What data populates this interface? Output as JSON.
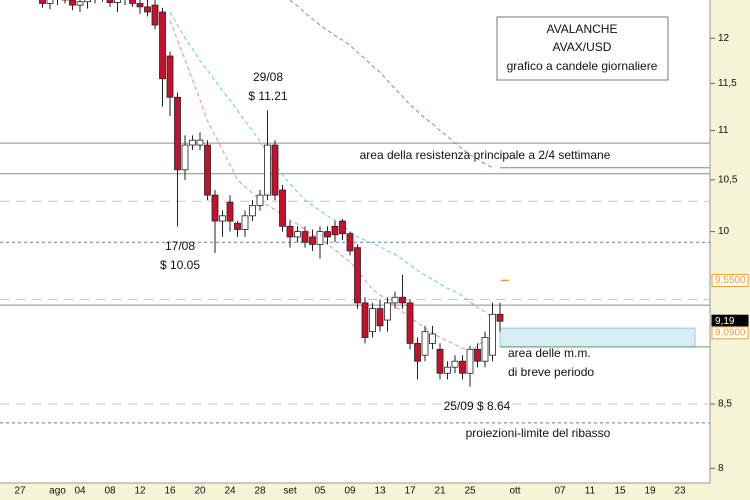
{
  "chart_data": {
    "type": "candlestick",
    "title": "AVALANCHE",
    "subtitle": "AVAX/USD",
    "description": "grafico a candele giornaliere",
    "log_scale": true,
    "up_color": "#ffffff",
    "down_color": "#c8102e",
    "ylim": [
      7.89,
      12.44
    ],
    "yticks": [
      {
        "value": 12,
        "label": "12"
      },
      {
        "value": 11.5,
        "label": "11,5"
      },
      {
        "value": 11,
        "label": "11"
      },
      {
        "value": 10.5,
        "label": "10,5"
      },
      {
        "value": 10,
        "label": "10"
      },
      {
        "value": 8.5,
        "label": "8,5"
      },
      {
        "value": 8,
        "label": "8"
      }
    ],
    "categories": [
      "27",
      null,
      null,
      null,
      null,
      "ago",
      null,
      null,
      "04",
      null,
      null,
      null,
      "08",
      null,
      null,
      null,
      "12",
      null,
      null,
      null,
      "16",
      null,
      null,
      null,
      "20",
      null,
      null,
      null,
      "24",
      null,
      null,
      null,
      "28",
      null,
      null,
      null,
      "set",
      null,
      null,
      null,
      "05",
      null,
      null,
      null,
      "09",
      null,
      null,
      null,
      "13",
      null,
      null,
      null,
      "17",
      null,
      null,
      null,
      "21",
      null,
      null,
      null,
      "25",
      null,
      null,
      null,
      null,
      null,
      "ott",
      null,
      null,
      null,
      null,
      null,
      "07",
      null,
      null,
      null,
      "11",
      null,
      null,
      null,
      "15",
      null,
      null,
      null,
      "19",
      null,
      null,
      null,
      "23",
      null,
      null
    ],
    "open": [
      null,
      null,
      null,
      12.45,
      12.4,
      12.46,
      12.5,
      12.44,
      12.38,
      12.42,
      12.48,
      12.52,
      12.47,
      12.41,
      12.45,
      12.5,
      12.4,
      12.36,
      12.38,
      12.3,
      11.8,
      11.35,
      10.6,
      10.85,
      10.85,
      10.85,
      10.35,
      10.1,
      10.28,
      10.08,
      10.02,
      10.15,
      10.25,
      10.35,
      10.85,
      10.4,
      10.05,
      9.95,
      10.0,
      9.95,
      9.88,
      10.0,
      10.05,
      10.1,
      9.98,
      9.85,
      9.35,
      9.1,
      9.3,
      9.2,
      9.35,
      9.4,
      9.35,
      9.0,
      8.9,
      9.0,
      8.95,
      8.75,
      8.8,
      8.85,
      8.75,
      8.95,
      8.85,
      8.9,
      9.25,
      null,
      null,
      null,
      null,
      null,
      null,
      null,
      null,
      null,
      null,
      null,
      null,
      null,
      null,
      null,
      null,
      null,
      null,
      null,
      null,
      null,
      null,
      null,
      null,
      null,
      null
    ],
    "high": [
      null,
      null,
      null,
      12.55,
      12.52,
      12.6,
      12.62,
      12.55,
      12.5,
      12.55,
      12.6,
      12.65,
      12.58,
      12.5,
      12.58,
      12.6,
      12.52,
      12.48,
      12.5,
      12.35,
      11.85,
      11.4,
      10.95,
      10.95,
      10.98,
      10.9,
      10.4,
      10.2,
      10.35,
      10.1,
      10.2,
      10.3,
      10.4,
      11.21,
      10.9,
      10.45,
      10.1,
      10.05,
      10.05,
      10.02,
      10.05,
      10.05,
      10.1,
      10.12,
      10.0,
      9.88,
      9.4,
      9.35,
      9.38,
      9.4,
      9.45,
      9.6,
      9.38,
      9.05,
      9.15,
      9.15,
      9.0,
      8.85,
      8.9,
      8.9,
      8.98,
      9.0,
      9.1,
      9.35,
      9.35,
      null,
      null,
      null,
      null,
      null,
      null,
      null,
      null,
      null,
      null,
      null,
      null,
      null,
      null,
      null,
      null,
      null,
      null,
      null,
      null,
      null,
      null,
      null,
      null,
      null,
      null
    ],
    "low": [
      null,
      null,
      null,
      12.35,
      12.33,
      12.38,
      12.4,
      12.32,
      12.3,
      12.34,
      12.4,
      12.42,
      12.36,
      12.3,
      12.38,
      12.36,
      12.28,
      12.25,
      12.1,
      11.25,
      11.15,
      10.05,
      10.5,
      10.8,
      10.8,
      10.3,
      9.8,
      9.95,
      10.0,
      9.95,
      9.95,
      10.1,
      10.2,
      10.3,
      10.3,
      10.0,
      9.85,
      9.9,
      9.85,
      9.82,
      9.75,
      9.88,
      9.9,
      9.92,
      9.78,
      9.3,
      9.0,
      9.05,
      9.1,
      9.1,
      9.3,
      9.3,
      8.95,
      8.7,
      8.85,
      8.95,
      8.7,
      8.7,
      8.75,
      8.7,
      8.64,
      8.8,
      8.8,
      8.85,
      9.1,
      null,
      null,
      null,
      null,
      null,
      null,
      null,
      null,
      null,
      null,
      null,
      null,
      null,
      null,
      null,
      null,
      null,
      null,
      null,
      null,
      null,
      null,
      null,
      null,
      null,
      null
    ],
    "close": [
      null,
      null,
      null,
      12.4,
      12.46,
      12.5,
      12.44,
      12.38,
      12.42,
      12.48,
      12.52,
      12.47,
      12.41,
      12.45,
      12.5,
      12.4,
      12.36,
      12.3,
      12.15,
      11.55,
      11.35,
      10.6,
      10.85,
      10.9,
      10.9,
      10.35,
      10.1,
      10.15,
      10.1,
      10.02,
      10.15,
      10.25,
      10.35,
      10.85,
      10.35,
      10.05,
      9.95,
      10.0,
      9.9,
      9.88,
      10.0,
      9.95,
      9.97,
      9.98,
      9.82,
      9.35,
      9.05,
      9.3,
      9.15,
      9.35,
      9.4,
      9.35,
      9.0,
      8.85,
      9.1,
      9.08,
      8.75,
      8.8,
      8.85,
      8.75,
      8.95,
      8.85,
      9.05,
      9.25,
      9.19,
      null,
      null,
      null,
      null,
      null,
      null,
      null,
      null,
      null,
      null,
      null,
      null,
      null,
      null,
      null,
      null,
      null,
      null,
      null,
      null,
      null,
      null,
      null,
      null,
      null,
      null
    ],
    "moving_averages": [
      {
        "color": "#6a8fd8",
        "values": [
          null,
          null,
          null,
          null,
          null,
          null,
          null,
          null,
          null,
          null,
          null,
          null,
          null,
          null,
          null,
          null,
          null,
          null,
          null,
          null,
          null,
          null,
          null,
          null,
          null,
          null,
          null,
          null,
          null,
          null,
          null,
          null,
          null,
          null,
          null,
          null,
          12.44,
          12.37,
          12.29,
          12.22,
          12.15,
          12.09,
          12.03,
          11.98,
          11.92,
          11.84,
          11.77,
          11.69,
          11.62,
          11.53,
          11.44,
          11.36,
          11.27,
          11.2,
          11.13,
          11.07,
          11.0,
          10.94,
          10.87,
          10.81,
          10.75,
          10.71,
          10.66,
          10.62,
          null,
          null,
          null,
          null,
          null,
          null,
          null,
          null,
          null,
          null,
          null,
          null,
          null,
          null,
          null,
          null,
          null,
          null,
          null,
          null,
          null,
          null,
          null,
          null,
          null,
          null,
          null
        ]
      },
      {
        "color": "#5fd6b0",
        "values": [
          null,
          null,
          null,
          null,
          null,
          null,
          null,
          null,
          null,
          null,
          null,
          null,
          null,
          null,
          null,
          null,
          null,
          null,
          null,
          null,
          12.3,
          12.15,
          12.0,
          11.88,
          11.75,
          11.64,
          11.53,
          11.42,
          11.32,
          11.21,
          11.1,
          11.0,
          10.89,
          10.77,
          10.66,
          10.55,
          10.46,
          10.38,
          10.3,
          10.25,
          10.2,
          10.15,
          10.11,
          10.05,
          10.0,
          9.95,
          9.92,
          9.89,
          9.86,
          9.82,
          9.79,
          9.74,
          9.69,
          9.64,
          9.6,
          9.56,
          9.52,
          9.48,
          9.45,
          9.41,
          9.36,
          9.31,
          9.27,
          9.22,
          null,
          null,
          null,
          null,
          null,
          null,
          null,
          null,
          null,
          null,
          null,
          null,
          null,
          null,
          null,
          null,
          null,
          null,
          null,
          null,
          null,
          null,
          null,
          null,
          null,
          null,
          null
        ]
      },
      {
        "color": "#f08a9a",
        "values": [
          null,
          null,
          null,
          null,
          null,
          null,
          null,
          null,
          null,
          null,
          null,
          null,
          null,
          null,
          null,
          null,
          null,
          null,
          null,
          null,
          12.2,
          11.98,
          11.76,
          11.54,
          11.32,
          11.1,
          10.95,
          10.8,
          10.65,
          10.5,
          10.43,
          10.37,
          10.3,
          10.25,
          10.21,
          10.16,
          10.11,
          10.07,
          10.02,
          9.97,
          9.93,
          9.88,
          9.83,
          9.77,
          9.72,
          9.64,
          9.55,
          9.47,
          9.42,
          9.37,
          9.32,
          9.27,
          9.22,
          9.18,
          9.13,
          9.09,
          9.05,
          9.02,
          8.99,
          8.96,
          8.93,
          8.98,
          9.03,
          9.08,
          null,
          null,
          null,
          null,
          null,
          null,
          null,
          null,
          null,
          null,
          null,
          null,
          null,
          null,
          null,
          null,
          null,
          null,
          null,
          null,
          null,
          null,
          null,
          null,
          null,
          null,
          null
        ]
      }
    ],
    "levels": [
      {
        "value": 10.87,
        "color": "#8c8c8c",
        "dash": false,
        "partial": false
      },
      {
        "value": 10.56,
        "color": "#8c8c8c",
        "dash": false,
        "partial": false
      },
      {
        "value": 9.33,
        "color": "#8c8c8c",
        "dash": false,
        "partial": false
      },
      {
        "value": 10.29,
        "color": "#c8c8c8",
        "dash": true,
        "partial": false
      },
      {
        "value": 9.38,
        "color": "#c8c8c8",
        "dash": true,
        "partial": false
      },
      {
        "value": 8.5,
        "color": "#c8c8c8",
        "dash": true,
        "partial": false
      },
      {
        "value": 9.9,
        "color": "#5b7fd0",
        "dash": true,
        "partial": false
      },
      {
        "value": 8.35,
        "color": "#5b7fd0",
        "dash": true,
        "partial": false
      },
      {
        "value": 10.62,
        "color": "#4caf50",
        "dash": false,
        "partial": true
      },
      {
        "value": 8.97,
        "color": "#4caf50",
        "dash": false,
        "partial": true
      }
    ],
    "zone": {
      "low": 8.97,
      "high": 9.13,
      "color": "#d8ecf6"
    },
    "price_tags": [
      {
        "value": 9.55,
        "label": "9,5500",
        "color": "#f0a030",
        "filled": false
      },
      {
        "value": 9.19,
        "label": "9,19",
        "color": "#000000",
        "filled": true
      },
      {
        "value": 9.09,
        "label": "9,0900",
        "color": "#f0a030",
        "filled": false
      }
    ],
    "annotations": [
      {
        "lines": [
          "29/08",
          "$ 11.21"
        ]
      },
      {
        "lines": [
          "17/08",
          "$ 10.05"
        ]
      },
      {
        "lines": [
          "25/09 $ 8.64"
        ]
      },
      {
        "lines": [
          "area della resistenza principale a 2/4 settimane"
        ]
      },
      {
        "lines": [
          "area delle m.m.",
          "di breve periodo"
        ]
      },
      {
        "lines": [
          "proiezioni-limite del ribasso"
        ]
      }
    ]
  }
}
